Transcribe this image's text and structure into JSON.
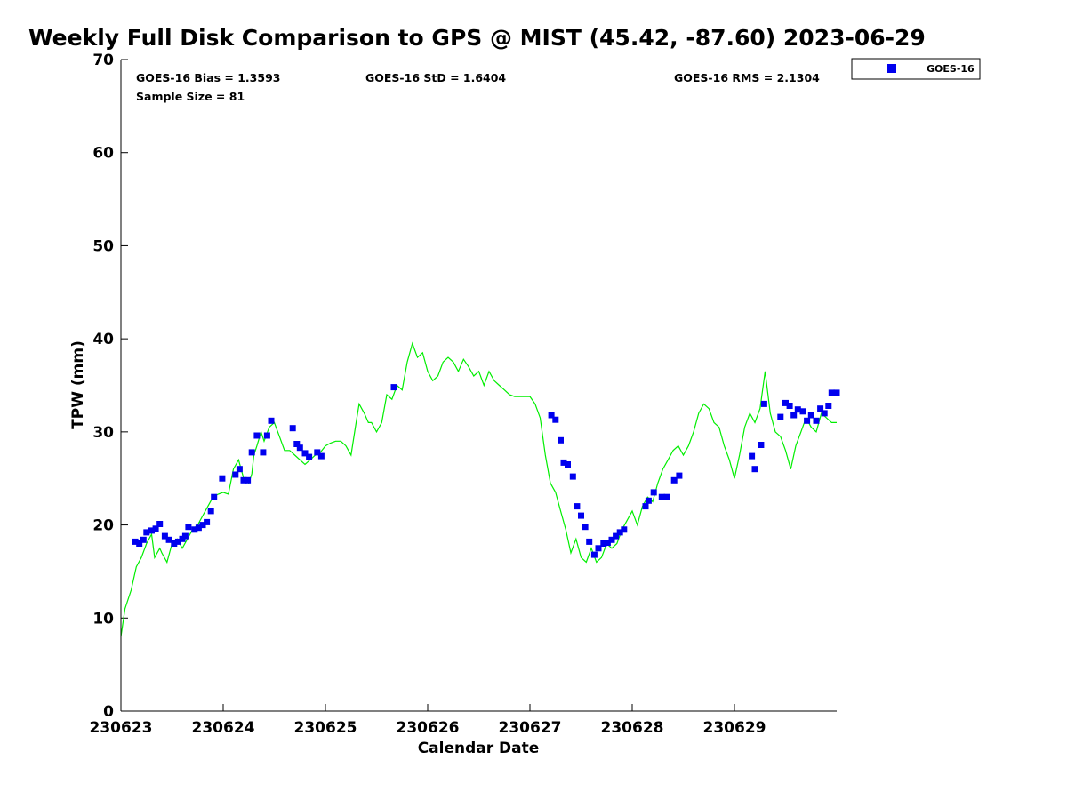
{
  "title": "Weekly Full Disk Comparison to GPS @ MIST (45.42, -87.60) 2023-06-29",
  "stats": {
    "bias": "GOES-16 Bias = 1.3593",
    "std": "GOES-16 StD = 1.6404",
    "rms": "GOES-16 RMS = 2.1304",
    "sample": "Sample Size = 81"
  },
  "legend": {
    "label": "GOES-16",
    "marker_color": "#0000ee"
  },
  "colors": {
    "gps_line": "#00ee00",
    "goes_marker": "#0000ee"
  },
  "chart_data": {
    "type": "scatter",
    "xlabel": "Calendar Date",
    "ylabel": "TPW (mm)",
    "xlim": [
      0,
      7
    ],
    "ylim": [
      0,
      70
    ],
    "xticks": [
      0,
      1,
      2,
      3,
      4,
      5,
      6
    ],
    "xtick_labels": [
      "230623",
      "230624",
      "230625",
      "230626",
      "230627",
      "230628",
      "230629"
    ],
    "yticks": [
      0,
      10,
      20,
      30,
      40,
      50,
      60,
      70
    ],
    "legend_position": "top-right, outside plot",
    "series": [
      {
        "kind": "line",
        "color": "#00ee00",
        "x": [
          0.0,
          0.04,
          0.1,
          0.15,
          0.2,
          0.25,
          0.3,
          0.33,
          0.38,
          0.4,
          0.45,
          0.5,
          0.55,
          0.6,
          0.65,
          0.7,
          0.75,
          0.8,
          0.85,
          0.9,
          0.95,
          1.0,
          1.05,
          1.1,
          1.15,
          1.2,
          1.25,
          1.28,
          1.3,
          1.33,
          1.37,
          1.4,
          1.45,
          1.5,
          1.55,
          1.6,
          1.65,
          1.7,
          1.75,
          1.8,
          1.85,
          1.9,
          1.95,
          2.0,
          2.05,
          2.1,
          2.15,
          2.2,
          2.25,
          2.3,
          2.33,
          2.38,
          2.42,
          2.45,
          2.5,
          2.55,
          2.6,
          2.65,
          2.7,
          2.75,
          2.8,
          2.85,
          2.9,
          2.95,
          3.0,
          3.05,
          3.1,
          3.15,
          3.2,
          3.25,
          3.3,
          3.35,
          3.4,
          3.45,
          3.5,
          3.55,
          3.6,
          3.65,
          3.7,
          3.75,
          3.8,
          3.85,
          3.9,
          3.95,
          4.0,
          4.05,
          4.1,
          4.15,
          4.2,
          4.25,
          4.3,
          4.35,
          4.4,
          4.45,
          4.5,
          4.55,
          4.6,
          4.65,
          4.7,
          4.75,
          4.8,
          4.85,
          4.9,
          4.95,
          5.0,
          5.05,
          5.1,
          5.15,
          5.2,
          5.25,
          5.3,
          5.35,
          5.4,
          5.45,
          5.5,
          5.55,
          5.6,
          5.65,
          5.7,
          5.75,
          5.8,
          5.85,
          5.9,
          5.95,
          6.0,
          6.05,
          6.1,
          6.15,
          6.2,
          6.25,
          6.3,
          6.35,
          6.4,
          6.45,
          6.5,
          6.55,
          6.6,
          6.65,
          6.7,
          6.75,
          6.8,
          6.85,
          6.9,
          6.95,
          7.0
        ],
        "y": [
          8.0,
          11.0,
          13.0,
          15.5,
          16.5,
          18.0,
          19.0,
          16.5,
          17.5,
          17.0,
          16.0,
          18.0,
          18.5,
          17.5,
          18.5,
          19.5,
          20.0,
          21.0,
          22.0,
          23.0,
          23.3,
          23.5,
          23.3,
          26.0,
          27.0,
          25.0,
          24.5,
          25.5,
          27.5,
          28.5,
          30.0,
          29.0,
          30.5,
          31.0,
          29.5,
          28.0,
          28.0,
          27.5,
          27.0,
          26.5,
          27.0,
          27.5,
          27.8,
          28.5,
          28.8,
          29.0,
          29.0,
          28.5,
          27.5,
          31.0,
          33.0,
          32.0,
          31.0,
          31.0,
          30.0,
          31.0,
          34.0,
          33.5,
          35.0,
          34.5,
          37.5,
          39.5,
          38.0,
          38.5,
          36.5,
          35.5,
          36.0,
          37.5,
          38.0,
          37.5,
          36.5,
          37.8,
          37.0,
          36.0,
          36.5,
          35.0,
          36.5,
          35.5,
          35.0,
          34.5,
          34.0,
          33.8,
          33.8,
          33.8,
          33.8,
          33.0,
          31.5,
          27.5,
          24.5,
          23.5,
          21.5,
          19.5,
          17.0,
          18.5,
          16.5,
          16.0,
          17.5,
          16.0,
          16.5,
          18.0,
          17.5,
          18.0,
          19.5,
          20.5,
          21.5,
          20.0,
          22.0,
          23.0,
          22.5,
          24.5,
          26.0,
          27.0,
          28.0,
          28.5,
          27.5,
          28.5,
          30.0,
          32.0,
          33.0,
          32.5,
          31.0,
          30.5,
          28.5,
          27.0,
          25.0,
          27.5,
          30.5,
          32.0,
          31.0,
          32.5,
          36.5,
          32.0,
          30.0,
          29.5,
          28.0,
          26.0,
          28.5,
          30.0,
          31.5,
          30.5,
          30.0,
          32.0,
          31.5,
          31.0,
          31.0
        ]
      },
      {
        "name": "GOES-16",
        "kind": "marker",
        "color": "#0000ee",
        "x": [
          0.14,
          0.18,
          0.22,
          0.25,
          0.3,
          0.34,
          0.38,
          0.43,
          0.47,
          0.52,
          0.56,
          0.6,
          0.63,
          0.66,
          0.72,
          0.76,
          0.8,
          0.84,
          0.88,
          0.91,
          0.99,
          1.12,
          1.16,
          1.2,
          1.24,
          1.28,
          1.33,
          1.39,
          1.43,
          1.47,
          1.68,
          1.72,
          1.75,
          1.8,
          1.84,
          1.92,
          1.96,
          2.67,
          4.21,
          4.25,
          4.3,
          4.33,
          4.37,
          4.42,
          4.46,
          4.5,
          4.54,
          4.58,
          4.63,
          4.67,
          4.72,
          4.76,
          4.8,
          4.84,
          4.88,
          4.92,
          5.13,
          5.16,
          5.21,
          5.29,
          5.34,
          5.41,
          5.46,
          6.17,
          6.2,
          6.26,
          6.29,
          6.45,
          6.5,
          6.54,
          6.58,
          6.62,
          6.67,
          6.71,
          6.75,
          6.8,
          6.84,
          6.88,
          6.92,
          6.95,
          7.0
        ],
        "y": [
          18.2,
          18.0,
          18.4,
          19.2,
          19.4,
          19.6,
          20.1,
          18.8,
          18.4,
          18.0,
          18.2,
          18.5,
          18.8,
          19.8,
          19.5,
          19.7,
          20.0,
          20.3,
          21.5,
          23.0,
          25.0,
          25.4,
          26.0,
          24.8,
          24.8,
          27.8,
          29.6,
          27.8,
          29.6,
          31.2,
          30.4,
          28.7,
          28.3,
          27.7,
          27.3,
          27.8,
          27.4,
          34.8,
          31.8,
          31.3,
          29.1,
          26.7,
          26.5,
          25.2,
          22.0,
          21.0,
          19.8,
          18.2,
          16.8,
          17.5,
          18.0,
          18.1,
          18.4,
          18.8,
          19.2,
          19.5,
          22.0,
          22.6,
          23.5,
          23.0,
          23.0,
          24.8,
          25.3,
          27.4,
          26.0,
          28.6,
          33.0,
          31.6,
          33.1,
          32.8,
          31.8,
          32.4,
          32.2,
          31.2,
          31.8,
          31.2,
          32.5,
          32.0,
          32.8,
          34.2,
          34.2
        ]
      }
    ]
  }
}
